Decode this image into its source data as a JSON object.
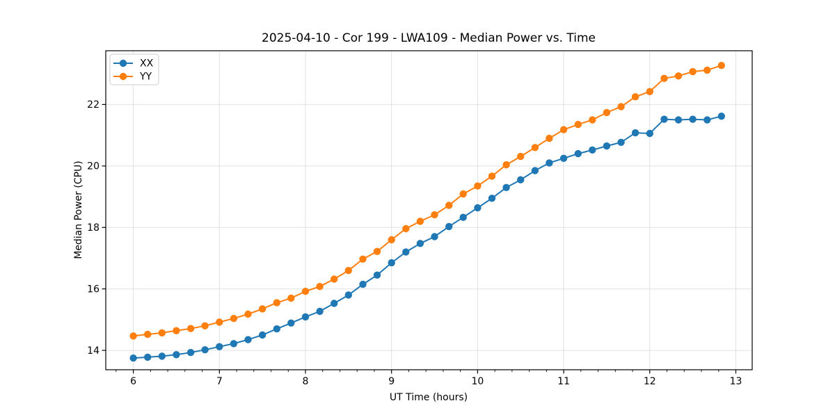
{
  "figure": {
    "background": "#ffffff"
  },
  "chart_data": {
    "type": "line",
    "title": "2025-04-10 - Cor 199 - LWA109 - Median Power vs. Time",
    "xlabel": "UT Time (hours)",
    "ylabel": "Median Power (CPU)",
    "x": [
      6.0,
      6.167,
      6.333,
      6.5,
      6.667,
      6.833,
      7.0,
      7.167,
      7.333,
      7.5,
      7.667,
      7.833,
      8.0,
      8.167,
      8.333,
      8.5,
      8.667,
      8.833,
      9.0,
      9.167,
      9.333,
      9.5,
      9.667,
      9.833,
      10.0,
      10.167,
      10.333,
      10.5,
      10.667,
      10.833,
      11.0,
      11.167,
      11.333,
      11.5,
      11.667,
      11.833,
      12.0,
      12.167,
      12.333,
      12.5,
      12.667,
      12.833
    ],
    "series": [
      {
        "name": "XX",
        "color": "#1f77b4",
        "values": [
          13.75,
          13.78,
          13.81,
          13.86,
          13.93,
          14.02,
          14.12,
          14.22,
          14.35,
          14.5,
          14.7,
          14.89,
          15.09,
          15.27,
          15.53,
          15.8,
          16.15,
          16.45,
          16.85,
          17.2,
          17.48,
          17.7,
          18.03,
          18.33,
          18.64,
          18.95,
          19.3,
          19.55,
          19.85,
          20.1,
          20.25,
          20.4,
          20.52,
          20.65,
          20.77,
          21.08,
          21.06,
          21.52,
          21.5,
          21.52,
          21.5,
          21.62
        ]
      },
      {
        "name": "YY",
        "color": "#ff7f0e",
        "values": [
          14.47,
          14.52,
          14.57,
          14.64,
          14.71,
          14.8,
          14.92,
          15.04,
          15.18,
          15.35,
          15.55,
          15.7,
          15.92,
          16.08,
          16.32,
          16.6,
          16.97,
          17.22,
          17.6,
          17.96,
          18.2,
          18.41,
          18.72,
          19.09,
          19.35,
          19.67,
          20.04,
          20.31,
          20.6,
          20.9,
          21.18,
          21.35,
          21.5,
          21.74,
          21.93,
          22.25,
          22.42,
          22.85,
          22.93,
          23.07,
          23.12,
          23.27
        ]
      }
    ],
    "xlim": [
      5.68,
      13.19
    ],
    "ylim": [
      13.37,
      23.75
    ],
    "xticks": [
      6,
      7,
      8,
      9,
      10,
      11,
      12,
      13
    ],
    "yticks": [
      14,
      16,
      18,
      20,
      22
    ],
    "x_minor_step": 0.2,
    "grid": true,
    "grid_color": "#e0e0e0",
    "axis_color": "#000000",
    "legend_position": "upper left",
    "marker": "circle"
  }
}
